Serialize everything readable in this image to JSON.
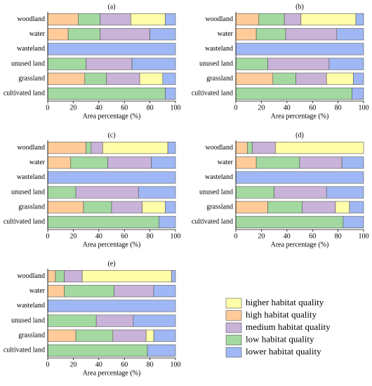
{
  "chart_data": [
    {
      "type": "stacked_barh",
      "title": "(a)",
      "xlabel": "Area percentage (%)",
      "xlim": [
        0,
        100
      ],
      "xticks": [
        0,
        20,
        40,
        60,
        80,
        100
      ],
      "categories": [
        "woodland",
        "water",
        "wasteland",
        "unused land",
        "grassland",
        "cultivated land"
      ],
      "series": [
        {
          "name": "higher habitat quality",
          "color": "#ffffaa",
          "values": [
            27,
            0,
            0,
            0,
            18,
            0
          ]
        },
        {
          "name": "high habitat quality",
          "color": "#ffcc99",
          "values": [
            24,
            16,
            0,
            0,
            29,
            0
          ]
        },
        {
          "name": "medium habitat quality",
          "color": "#c9b3d9",
          "values": [
            24,
            39,
            0,
            36,
            26,
            0
          ]
        },
        {
          "name": "low habitat quality",
          "color": "#a3d9a0",
          "values": [
            17,
            25,
            0,
            30,
            17,
            92
          ]
        },
        {
          "name": "lower habitat quality",
          "color": "#9fb8f5",
          "values": [
            8,
            20,
            100,
            34,
            10,
            8
          ]
        }
      ]
    },
    {
      "type": "stacked_barh",
      "title": "(b)",
      "xlabel": "Area percentage (%)",
      "xlim": [
        0,
        100
      ],
      "xticks": [
        0,
        20,
        40,
        60,
        80,
        100
      ],
      "categories": [
        "woodland",
        "water",
        "wasteland",
        "unused land",
        "grassland",
        "cultivated land"
      ],
      "series": [
        {
          "name": "higher habitat quality",
          "color": "#ffffaa",
          "values": [
            43,
            0,
            0,
            0,
            21,
            0
          ]
        },
        {
          "name": "high habitat quality",
          "color": "#ffcc99",
          "values": [
            18,
            16,
            0,
            0,
            29,
            0
          ]
        },
        {
          "name": "medium habitat quality",
          "color": "#c9b3d9",
          "values": [
            13,
            40,
            0,
            48,
            24,
            0
          ]
        },
        {
          "name": "low habitat quality",
          "color": "#a3d9a0",
          "values": [
            20,
            23,
            0,
            25,
            18,
            91
          ]
        },
        {
          "name": "lower habitat quality",
          "color": "#9fb8f5",
          "values": [
            6,
            21,
            100,
            27,
            8,
            9
          ]
        }
      ]
    },
    {
      "type": "stacked_barh",
      "title": "(c)",
      "xlabel": "Area percentage (%)",
      "xlim": [
        0,
        100
      ],
      "xticks": [
        0,
        20,
        40,
        60,
        80,
        100
      ],
      "categories": [
        "woodland",
        "water",
        "wasteland",
        "unused land",
        "grassland",
        "cultivated land"
      ],
      "series": [
        {
          "name": "higher habitat quality",
          "color": "#ffffaa",
          "values": [
            51,
            0,
            0,
            0,
            18,
            0
          ]
        },
        {
          "name": "high habitat quality",
          "color": "#ffcc99",
          "values": [
            30,
            18,
            0,
            0,
            28,
            0
          ]
        },
        {
          "name": "medium habitat quality",
          "color": "#c9b3d9",
          "values": [
            9,
            34,
            0,
            49,
            24,
            0
          ]
        },
        {
          "name": "low habitat quality",
          "color": "#a3d9a0",
          "values": [
            4,
            29,
            0,
            22,
            22,
            87
          ]
        },
        {
          "name": "lower habitat quality",
          "color": "#9fb8f5",
          "values": [
            6,
            19,
            100,
            29,
            8,
            13
          ]
        }
      ]
    },
    {
      "type": "stacked_barh",
      "title": "(d)",
      "xlabel": "Area percentage (%)",
      "xlim": [
        0,
        100
      ],
      "xticks": [
        0,
        20,
        40,
        60,
        80,
        100
      ],
      "categories": [
        "woodland",
        "water",
        "wasteland",
        "unused land",
        "grassland",
        "cultivated land"
      ],
      "series": [
        {
          "name": "higher habitat quality",
          "color": "#ffffaa",
          "values": [
            69,
            0,
            0,
            0,
            11,
            0
          ]
        },
        {
          "name": "high habitat quality",
          "color": "#ffcc99",
          "values": [
            9,
            16,
            0,
            0,
            25,
            0
          ]
        },
        {
          "name": "medium habitat quality",
          "color": "#c9b3d9",
          "values": [
            18,
            33,
            0,
            41,
            26,
            0
          ]
        },
        {
          "name": "low habitat quality",
          "color": "#a3d9a0",
          "values": [
            4,
            34,
            0,
            30,
            27,
            84
          ]
        },
        {
          "name": "lower habitat quality",
          "color": "#9fb8f5",
          "values": [
            0,
            17,
            100,
            29,
            11,
            16
          ]
        }
      ]
    },
    {
      "type": "stacked_barh",
      "title": "(e)",
      "xlabel": "Area percentage (%)",
      "xlim": [
        0,
        100
      ],
      "xticks": [
        0,
        20,
        40,
        60,
        80,
        100
      ],
      "categories": [
        "woodland",
        "water",
        "wasteland",
        "unused land",
        "grassland",
        "cultivated land"
      ],
      "series": [
        {
          "name": "higher habitat quality",
          "color": "#ffffaa",
          "values": [
            70,
            0,
            0,
            0,
            6,
            0
          ]
        },
        {
          "name": "high habitat quality",
          "color": "#ffcc99",
          "values": [
            6,
            13,
            0,
            0,
            22,
            0
          ]
        },
        {
          "name": "medium habitat quality",
          "color": "#c9b3d9",
          "values": [
            14,
            31,
            0,
            29,
            26,
            0
          ]
        },
        {
          "name": "low habitat quality",
          "color": "#a3d9a0",
          "values": [
            7,
            39,
            0,
            38,
            29,
            78
          ]
        },
        {
          "name": "lower habitat quality",
          "color": "#9fb8f5",
          "values": [
            3,
            17,
            100,
            33,
            17,
            22
          ]
        }
      ]
    }
  ]
}
